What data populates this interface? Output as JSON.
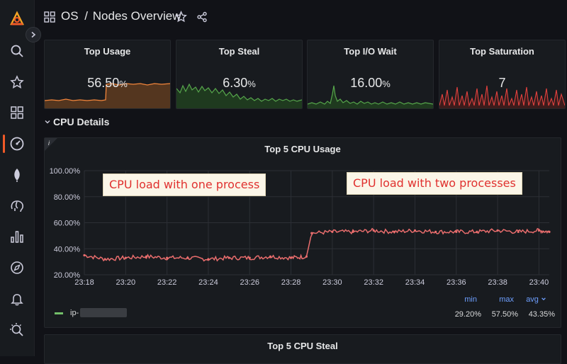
{
  "header": {
    "folder": "OS",
    "separator": "/",
    "dashboard": "Nodes Overview"
  },
  "sidebar": {
    "icons": [
      "grafana-logo-icon",
      "search-icon",
      "star-icon",
      "dashboards-icon",
      "dashboard-gauge-icon",
      "leaf-icon",
      "elephant-icon",
      "bar-chart-icon",
      "compass-icon",
      "bell-icon",
      "zoom-icon"
    ]
  },
  "stats": [
    {
      "title": "Top Usage",
      "value": "56.50",
      "unit": "%",
      "color": "#f2853b"
    },
    {
      "title": "Top Steal",
      "value": "6.30",
      "unit": "%",
      "color": "#56a64b"
    },
    {
      "title": "Top I/O Wait",
      "value": "16.00",
      "unit": "%",
      "color": "#56a64b"
    },
    {
      "title": "Top Saturation",
      "value": "7",
      "unit": "",
      "color": "#e0413e"
    }
  ],
  "row": {
    "label": "CPU Details"
  },
  "panel": {
    "title": "Top 5 CPU Usage",
    "info": "i",
    "annotation_left": "CPU load with one process",
    "annotation_right": "CPU load with two processes"
  },
  "chart_data": {
    "type": "line",
    "title": "Top 5 CPU Usage",
    "x_ticks": [
      "23:18",
      "23:20",
      "23:22",
      "23:24",
      "23:26",
      "23:28",
      "23:30",
      "23:32",
      "23:34",
      "23:36",
      "23:38",
      "23:40"
    ],
    "y_ticks": [
      "100.00%",
      "80.00%",
      "60.00%",
      "40.00%",
      "20.00%"
    ],
    "ylim": [
      20,
      100
    ],
    "xlim": [
      "23:18",
      "23:40:30"
    ],
    "series": [
      {
        "name": "ip-",
        "color": "#e96d6d",
        "x": [
          "23:18",
          "23:19",
          "23:20",
          "23:21",
          "23:22",
          "23:23",
          "23:24",
          "23:25",
          "23:26",
          "23:27",
          "23:28",
          "23:28:45",
          "23:29",
          "23:30",
          "23:31",
          "23:32",
          "23:33",
          "23:34",
          "23:35",
          "23:36",
          "23:37",
          "23:38",
          "23:39",
          "23:40",
          "23:40:30"
        ],
        "values": [
          35,
          32,
          33,
          34,
          33,
          33,
          32,
          33,
          33,
          34,
          33,
          34,
          52,
          53,
          53,
          54,
          53,
          54,
          53,
          53,
          53,
          54,
          53,
          54,
          53
        ]
      }
    ],
    "legend": {
      "headers": {
        "min": "min",
        "max": "max",
        "avg": "avg"
      },
      "values": {
        "min": "29.20%",
        "max": "57.50%",
        "avg": "43.35%"
      }
    }
  },
  "panel2": {
    "title": "Top 5 CPU Steal"
  }
}
